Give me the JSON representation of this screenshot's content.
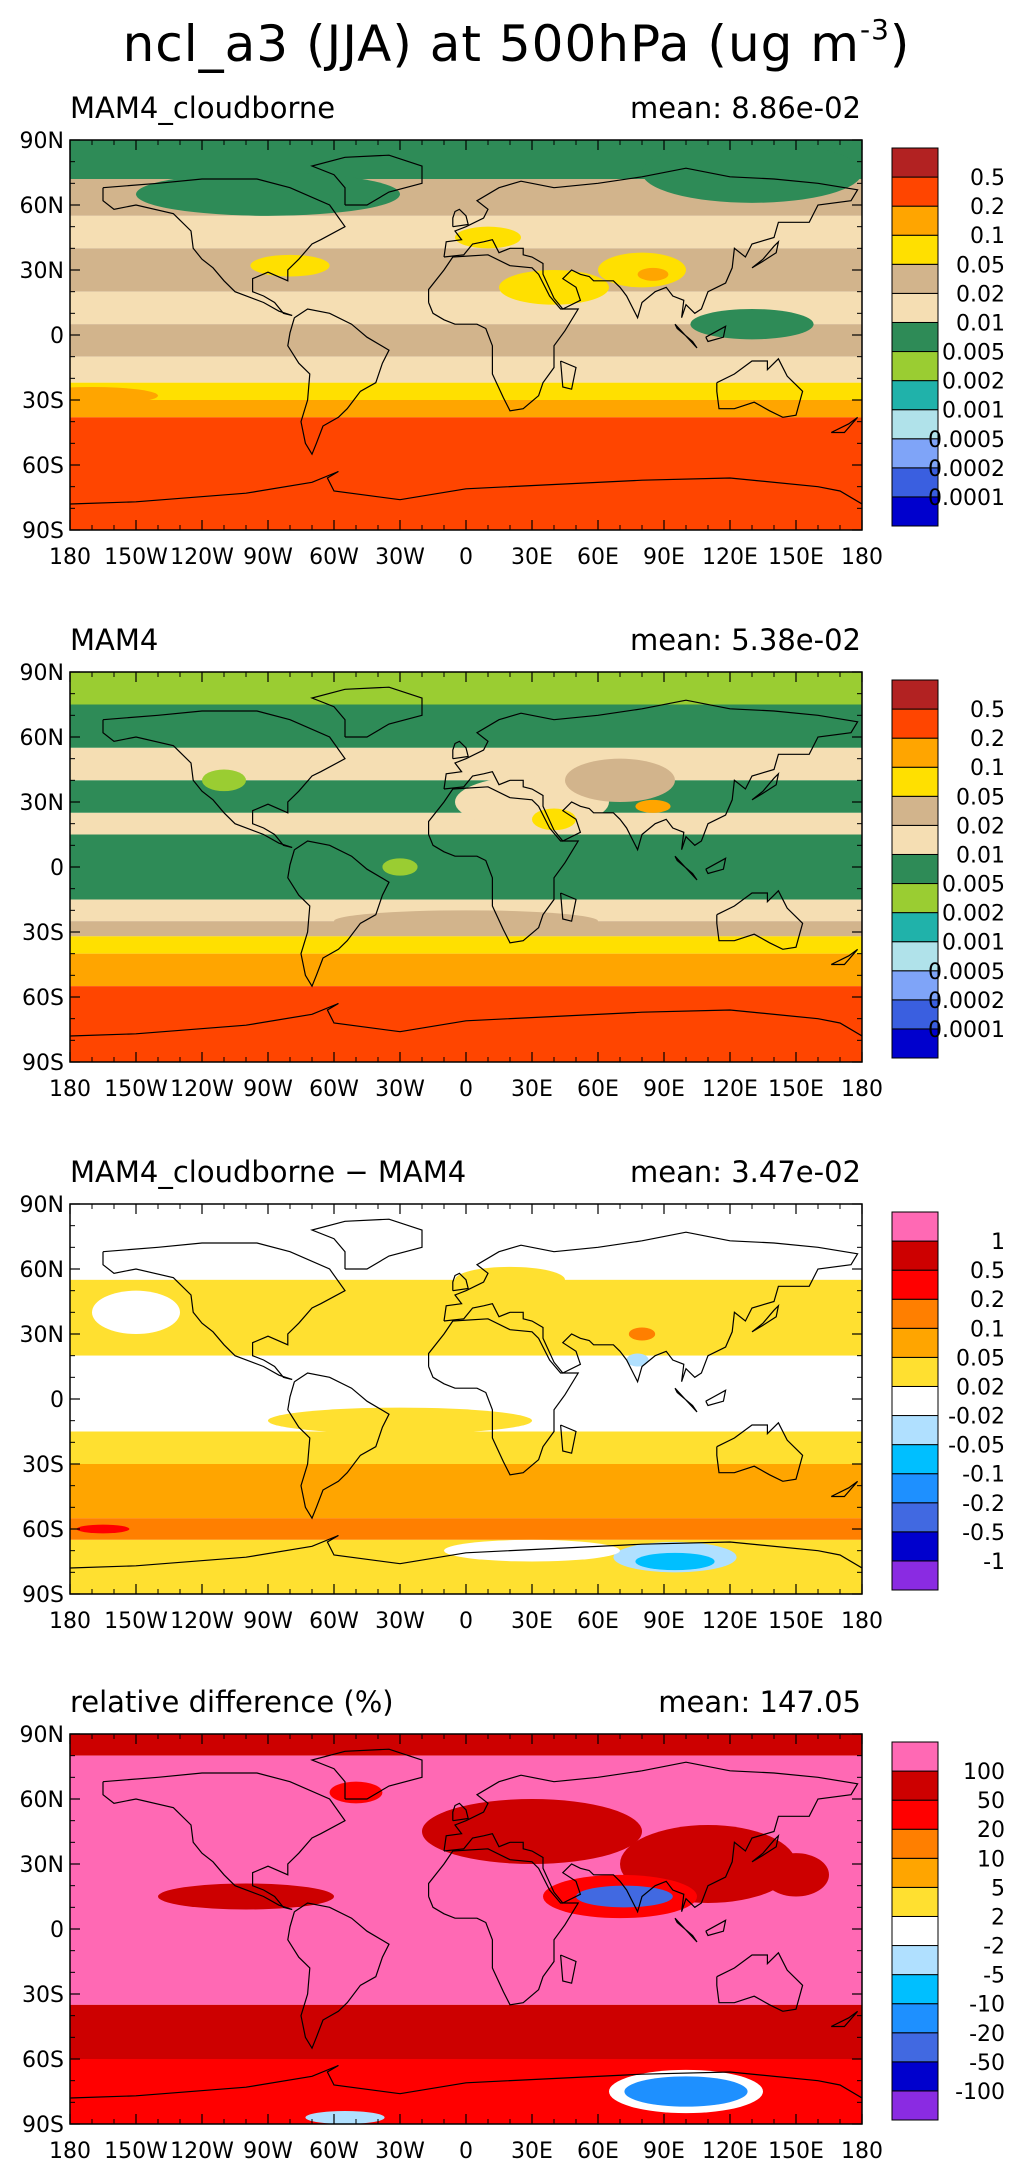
{
  "title": {
    "prefix": "ncl_a3 (JJA) at 500hPa (ug m",
    "superscript": "-3",
    "suffix": ")"
  },
  "lat_ticks": [
    "90N",
    "60N",
    "30N",
    "0",
    "30S",
    "60S",
    "90S"
  ],
  "lon_ticks": [
    "180",
    "150W",
    "120W",
    "90W",
    "60W",
    "30W",
    "0",
    "30E",
    "60E",
    "90E",
    "120E",
    "150E",
    "180"
  ],
  "colors": {
    "c0": "#0000CD",
    "c1": "#3A5FE0",
    "c2": "#7FA4F8",
    "c3": "#B0E2EA",
    "c4": "#20B2AA",
    "c5": "#9ACD32",
    "c6": "#2E8B57",
    "c7": "#F5DEB3",
    "c8": "#D2B48C",
    "c9": "#FFE000",
    "c10": "#FFA500",
    "c11": "#FF4500",
    "c12": "#B22222",
    "d_purple": "#8A2BE2",
    "d_navy": "#0000CD",
    "d_blue": "#4169E1",
    "d_mid": "#1E90FF",
    "d_cyan": "#00BFFF",
    "d_light": "#B0E0FF",
    "white": "#FFFFFF",
    "d_yellow": "#FFE030",
    "d_orange1": "#FFA500",
    "d_orange2": "#FF7F00",
    "d_red1": "#FF0000",
    "d_red2": "#CD0000",
    "d_pink": "#FF69B4"
  },
  "panels": [
    {
      "name": "MAM4_cloudborne",
      "mean": "mean: 8.86e-02",
      "colorbar": {
        "colors": [
          "#0000CD",
          "#3A5FE0",
          "#7FA4F8",
          "#B0E2EA",
          "#20B2AA",
          "#9ACD32",
          "#2E8B57",
          "#F5DEB3",
          "#D2B48C",
          "#FFE000",
          "#FFA500",
          "#FF4500",
          "#B22222"
        ],
        "labels": [
          "0.0001",
          "0.0002",
          "0.0005",
          "0.001",
          "0.002",
          "0.005",
          "0.01",
          "0.02",
          "0.05",
          "0.1",
          "0.2",
          "0.5"
        ]
      },
      "bands": [
        {
          "from": 90,
          "to": 72,
          "color": "#2E8B57"
        },
        {
          "from": 72,
          "to": 55,
          "color": "#D2B48C"
        },
        {
          "from": 55,
          "to": 40,
          "color": "#F5DEB3"
        },
        {
          "from": 40,
          "to": 20,
          "color": "#D2B48C"
        },
        {
          "from": 20,
          "to": 5,
          "color": "#F5DEB3"
        },
        {
          "from": 5,
          "to": -10,
          "color": "#D2B48C"
        },
        {
          "from": -10,
          "to": -22,
          "color": "#F5DEB3"
        },
        {
          "from": -22,
          "to": -30,
          "color": "#FFE000"
        },
        {
          "from": -30,
          "to": -38,
          "color": "#FFA500"
        },
        {
          "from": -38,
          "to": -90,
          "color": "#FF4500"
        }
      ],
      "blobs": [
        {
          "lon": 130,
          "lat": 75,
          "rx": 50,
          "ry": 14,
          "color": "#2E8B57"
        },
        {
          "lon": -90,
          "lat": 65,
          "rx": 60,
          "ry": 10,
          "color": "#2E8B57"
        },
        {
          "lon": 130,
          "lat": 5,
          "rx": 28,
          "ry": 7,
          "color": "#2E8B57"
        },
        {
          "lon": 40,
          "lat": 22,
          "rx": 25,
          "ry": 8,
          "color": "#FFE000"
        },
        {
          "lon": 80,
          "lat": 30,
          "rx": 20,
          "ry": 8,
          "color": "#FFE000"
        },
        {
          "lon": 85,
          "lat": 28,
          "rx": 7,
          "ry": 3,
          "color": "#FFA500"
        },
        {
          "lon": 10,
          "lat": 45,
          "rx": 15,
          "ry": 5,
          "color": "#FFE000"
        },
        {
          "lon": -80,
          "lat": 32,
          "rx": 18,
          "ry": 5,
          "color": "#FFE000"
        },
        {
          "lon": -170,
          "lat": -28,
          "rx": 30,
          "ry": 4,
          "color": "#FFA500"
        }
      ]
    },
    {
      "name": "MAM4",
      "mean": "mean: 5.38e-02",
      "colorbar": {
        "colors": [
          "#0000CD",
          "#3A5FE0",
          "#7FA4F8",
          "#B0E2EA",
          "#20B2AA",
          "#9ACD32",
          "#2E8B57",
          "#F5DEB3",
          "#D2B48C",
          "#FFE000",
          "#FFA500",
          "#FF4500",
          "#B22222"
        ],
        "labels": [
          "0.0001",
          "0.0002",
          "0.0005",
          "0.001",
          "0.002",
          "0.005",
          "0.01",
          "0.02",
          "0.05",
          "0.1",
          "0.2",
          "0.5"
        ]
      },
      "bands": [
        {
          "from": 90,
          "to": 75,
          "color": "#9ACD32"
        },
        {
          "from": 75,
          "to": 55,
          "color": "#2E8B57"
        },
        {
          "from": 55,
          "to": 40,
          "color": "#F5DEB3"
        },
        {
          "from": 40,
          "to": 25,
          "color": "#2E8B57"
        },
        {
          "from": 25,
          "to": 15,
          "color": "#F5DEB3"
        },
        {
          "from": 15,
          "to": -15,
          "color": "#2E8B57"
        },
        {
          "from": -15,
          "to": -25,
          "color": "#F5DEB3"
        },
        {
          "from": -25,
          "to": -32,
          "color": "#D2B48C"
        },
        {
          "from": -32,
          "to": -40,
          "color": "#FFE000"
        },
        {
          "from": -40,
          "to": -55,
          "color": "#FFA500"
        },
        {
          "from": -55,
          "to": -90,
          "color": "#FF4500"
        }
      ],
      "blobs": [
        {
          "lon": 30,
          "lat": 30,
          "rx": 35,
          "ry": 12,
          "color": "#F5DEB3"
        },
        {
          "lon": 70,
          "lat": 40,
          "rx": 25,
          "ry": 10,
          "color": "#D2B48C"
        },
        {
          "lon": 40,
          "lat": 22,
          "rx": 10,
          "ry": 5,
          "color": "#FFE000"
        },
        {
          "lon": 85,
          "lat": 28,
          "rx": 8,
          "ry": 3,
          "color": "#FFA500"
        },
        {
          "lon": -110,
          "lat": 40,
          "rx": 10,
          "ry": 5,
          "color": "#9ACD32"
        },
        {
          "lon": -30,
          "lat": 0,
          "rx": 8,
          "ry": 4,
          "color": "#9ACD32"
        },
        {
          "lon": 0,
          "lat": -25,
          "rx": 60,
          "ry": 5,
          "color": "#D2B48C"
        }
      ]
    },
    {
      "name": "MAM4_cloudborne − MAM4",
      "mean": "mean: 3.47e-02",
      "colorbar": {
        "colors": [
          "#8A2BE2",
          "#0000CD",
          "#4169E1",
          "#1E90FF",
          "#00BFFF",
          "#B0E0FF",
          "#FFFFFF",
          "#FFE030",
          "#FFA500",
          "#FF7F00",
          "#FF0000",
          "#CD0000",
          "#FF69B4"
        ],
        "labels": [
          "-1",
          "-0.5",
          "-0.2",
          "-0.1",
          "-0.05",
          "-0.02",
          "0.02",
          "0.05",
          "0.1",
          "0.2",
          "0.5",
          "1"
        ]
      },
      "bands": [
        {
          "from": 90,
          "to": 55,
          "color": "#FFFFFF"
        },
        {
          "from": 55,
          "to": 20,
          "color": "#FFE030"
        },
        {
          "from": 20,
          "to": 5,
          "color": "#FFFFFF"
        },
        {
          "from": 5,
          "to": -15,
          "color": "#FFFFFF"
        },
        {
          "from": -15,
          "to": -30,
          "color": "#FFE030"
        },
        {
          "from": -30,
          "to": -55,
          "color": "#FFA500"
        },
        {
          "from": -55,
          "to": -65,
          "color": "#FF7F00"
        },
        {
          "from": -65,
          "to": -90,
          "color": "#FFE030"
        }
      ],
      "blobs": [
        {
          "lon": 20,
          "lat": 55,
          "rx": 25,
          "ry": 6,
          "color": "#FFE030"
        },
        {
          "lon": -150,
          "lat": 40,
          "rx": 20,
          "ry": 10,
          "color": "#FFFFFF"
        },
        {
          "lon": -30,
          "lat": -10,
          "rx": 60,
          "ry": 6,
          "color": "#FFE030"
        },
        {
          "lon": 80,
          "lat": 30,
          "rx": 6,
          "ry": 3,
          "color": "#FF7F00"
        },
        {
          "lon": 78,
          "lat": 18,
          "rx": 5,
          "ry": 3,
          "color": "#B0E0FF"
        },
        {
          "lon": 95,
          "lat": -73,
          "rx": 28,
          "ry": 7,
          "color": "#B0E0FF"
        },
        {
          "lon": 95,
          "lat": -75,
          "rx": 18,
          "ry": 4,
          "color": "#00BFFF"
        },
        {
          "lon": -165,
          "lat": -60,
          "rx": 12,
          "ry": 2,
          "color": "#FF0000"
        },
        {
          "lon": 30,
          "lat": -70,
          "rx": 40,
          "ry": 5,
          "color": "#FFFFFF"
        }
      ]
    },
    {
      "name": "relative difference (%)",
      "mean": "mean: 147.05",
      "colorbar": {
        "colors": [
          "#8A2BE2",
          "#0000CD",
          "#4169E1",
          "#1E90FF",
          "#00BFFF",
          "#B0E0FF",
          "#FFFFFF",
          "#FFE030",
          "#FFA500",
          "#FF7F00",
          "#FF0000",
          "#CD0000",
          "#FF69B4"
        ],
        "labels": [
          "-100",
          "-50",
          "-20",
          "-10",
          "-5",
          "-2",
          "2",
          "5",
          "10",
          "20",
          "50",
          "100"
        ]
      },
      "bands": [
        {
          "from": 90,
          "to": 80,
          "color": "#CD0000"
        },
        {
          "from": 80,
          "to": -35,
          "color": "#FF69B4"
        },
        {
          "from": -35,
          "to": -60,
          "color": "#CD0000"
        },
        {
          "from": -60,
          "to": -90,
          "color": "#FF0000"
        }
      ],
      "blobs": [
        {
          "lon": 30,
          "lat": 45,
          "rx": 50,
          "ry": 15,
          "color": "#CD0000"
        },
        {
          "lon": 110,
          "lat": 30,
          "rx": 40,
          "ry": 18,
          "color": "#CD0000"
        },
        {
          "lon": 70,
          "lat": 15,
          "rx": 35,
          "ry": 10,
          "color": "#FF0000"
        },
        {
          "lon": 72,
          "lat": 15,
          "rx": 22,
          "ry": 5,
          "color": "#4169E1"
        },
        {
          "lon": 150,
          "lat": 25,
          "rx": 15,
          "ry": 10,
          "color": "#CD0000"
        },
        {
          "lon": -100,
          "lat": 15,
          "rx": 40,
          "ry": 6,
          "color": "#CD0000"
        },
        {
          "lon": -50,
          "lat": 63,
          "rx": 12,
          "ry": 5,
          "color": "#FF0000"
        },
        {
          "lon": 100,
          "lat": -75,
          "rx": 35,
          "ry": 10,
          "color": "#FFFFFF"
        },
        {
          "lon": 100,
          "lat": -75,
          "rx": 28,
          "ry": 7,
          "color": "#1E90FF"
        },
        {
          "lon": -55,
          "lat": -87,
          "rx": 18,
          "ry": 3,
          "color": "#B0E0FF"
        }
      ]
    }
  ]
}
